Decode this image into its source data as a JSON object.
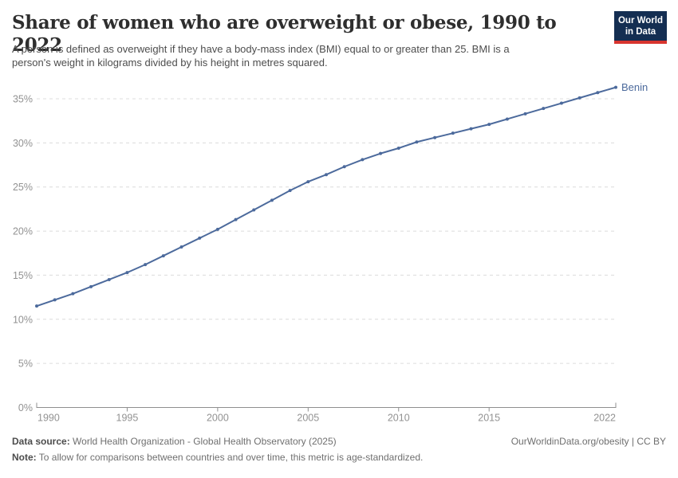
{
  "header": {
    "title": "Share of women who are overweight or obese, 1990 to 2022",
    "subtitle_line1": "A person is defined as overweight if they have a body-mass index (BMI) equal to or greater than 25. BMI is a",
    "subtitle_line2": "person's weight in kilograms divided by his height in metres squared.",
    "logo": {
      "line1": "Our World",
      "line2": "in Data"
    }
  },
  "chart_data": {
    "type": "line",
    "title": "Share of women who are overweight or obese, 1990 to 2022",
    "xlabel": "",
    "ylabel": "",
    "xlim": [
      1990,
      2022
    ],
    "ylim": [
      0,
      37
    ],
    "x_ticks": [
      1990,
      1995,
      2000,
      2005,
      2010,
      2015,
      2022
    ],
    "y_ticks": [
      0,
      5,
      10,
      15,
      20,
      25,
      30,
      35
    ],
    "y_tick_suffix": "%",
    "grid": "horizontal dashed",
    "legend_position": "end-of-line label",
    "series": [
      {
        "name": "Benin",
        "color": "#4c6a9c",
        "x": [
          1990,
          1991,
          1992,
          1993,
          1994,
          1995,
          1996,
          1997,
          1998,
          1999,
          2000,
          2001,
          2002,
          2003,
          2004,
          2005,
          2006,
          2007,
          2008,
          2009,
          2010,
          2011,
          2012,
          2013,
          2014,
          2015,
          2016,
          2017,
          2018,
          2019,
          2020,
          2021,
          2022
        ],
        "values": [
          11.5,
          12.2,
          12.9,
          13.7,
          14.5,
          15.3,
          16.2,
          17.2,
          18.2,
          19.2,
          20.2,
          21.3,
          22.4,
          23.5,
          24.6,
          25.6,
          26.4,
          27.3,
          28.1,
          28.8,
          29.4,
          30.1,
          30.6,
          31.1,
          31.6,
          32.1,
          32.7,
          33.3,
          33.9,
          34.5,
          35.1,
          35.7,
          36.3
        ]
      }
    ]
  },
  "footer": {
    "datasource_label": "Data source:",
    "datasource_text": " World Health Organization - Global Health Observatory (2025)",
    "note_label": "Note:",
    "note_text": " To allow for comparisons between countries and over time, this metric is age-standardized.",
    "rights": "OurWorldinData.org/obesity | CC BY"
  },
  "colors": {
    "line": "#4c6a9c",
    "gridline": "#dcdcdc",
    "axis": "#8f8f8f",
    "tick_label": "#929292",
    "logo_navy": "#142e52",
    "logo_red": "#d8352f"
  }
}
